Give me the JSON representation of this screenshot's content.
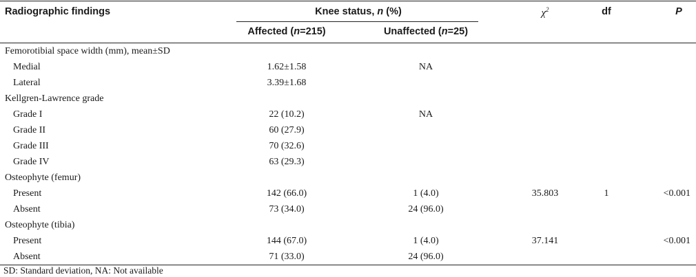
{
  "header": {
    "col_findings": "Radiographic findings",
    "knee_status_prefix": "Knee status, ",
    "knee_status_n": "n",
    "knee_status_suffix": " (%)",
    "affected_prefix": "Affected (",
    "affected_n": "n",
    "affected_suffix": "=215)",
    "unaffected_prefix": "Unaffected (",
    "unaffected_n": "n",
    "unaffected_suffix": "=25)",
    "chi_base": "χ",
    "chi_sup": "2",
    "df": "df",
    "p": "P"
  },
  "rows": [
    {
      "label": "Femorotibial space width (mm), mean±SD",
      "level": 0,
      "affected": "",
      "unaffected": "",
      "chi": "",
      "df": "",
      "p": ""
    },
    {
      "label": "Medial",
      "level": 1,
      "affected": "1.62±1.58",
      "unaffected": "NA",
      "chi": "",
      "df": "",
      "p": ""
    },
    {
      "label": "Lateral",
      "level": 1,
      "affected": "3.39±1.68",
      "unaffected": "",
      "chi": "",
      "df": "",
      "p": ""
    },
    {
      "label": "Kellgren-Lawrence grade",
      "level": 0,
      "affected": "",
      "unaffected": "",
      "chi": "",
      "df": "",
      "p": ""
    },
    {
      "label": "Grade I",
      "level": 1,
      "affected": "22 (10.2)",
      "unaffected": "NA",
      "chi": "",
      "df": "",
      "p": ""
    },
    {
      "label": "Grade II",
      "level": 1,
      "affected": "60 (27.9)",
      "unaffected": "",
      "chi": "",
      "df": "",
      "p": ""
    },
    {
      "label": "Grade III",
      "level": 1,
      "affected": "70 (32.6)",
      "unaffected": "",
      "chi": "",
      "df": "",
      "p": ""
    },
    {
      "label": "Grade IV",
      "level": 1,
      "affected": "63 (29.3)",
      "unaffected": "",
      "chi": "",
      "df": "",
      "p": ""
    },
    {
      "label": "Osteophyte (femur)",
      "level": 0,
      "affected": "",
      "unaffected": "",
      "chi": "",
      "df": "",
      "p": ""
    },
    {
      "label": "Present",
      "level": 1,
      "affected": "142 (66.0)",
      "unaffected": "1 (4.0)",
      "chi": "35.803",
      "df": "1",
      "p": "<0.001"
    },
    {
      "label": "Absent",
      "level": 1,
      "affected": "73 (34.0)",
      "unaffected": "24 (96.0)",
      "chi": "",
      "df": "",
      "p": ""
    },
    {
      "label": "Osteophyte (tibia)",
      "level": 0,
      "affected": "",
      "unaffected": "",
      "chi": "",
      "df": "",
      "p": ""
    },
    {
      "label": "Present",
      "level": 1,
      "affected": "144 (67.0)",
      "unaffected": "1 (4.0)",
      "chi": "37.141",
      "df": "",
      "p": "<0.001"
    },
    {
      "label": "Absent",
      "level": 1,
      "affected": "71 (33.0)",
      "unaffected": "24 (96.0)",
      "chi": "",
      "df": "",
      "p": ""
    }
  ],
  "footnote": "SD: Standard deviation, NA: Not available"
}
